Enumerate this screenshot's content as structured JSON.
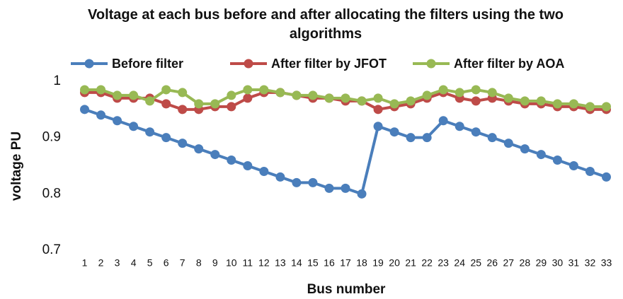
{
  "chart_data": {
    "type": "line",
    "title": "Voltage at each bus before and after allocating the filters using the two algorithms",
    "xlabel": "Bus number",
    "ylabel": "voltage PU",
    "categories": [
      1,
      2,
      3,
      4,
      5,
      6,
      7,
      8,
      9,
      10,
      11,
      12,
      13,
      14,
      15,
      16,
      17,
      18,
      19,
      20,
      21,
      22,
      23,
      24,
      25,
      26,
      27,
      28,
      29,
      30,
      31,
      32,
      33
    ],
    "series": [
      {
        "name": "Before filter",
        "color": "#4a7ebb",
        "values": [
          0.95,
          0.94,
          0.93,
          0.92,
          0.91,
          0.9,
          0.89,
          0.88,
          0.87,
          0.86,
          0.85,
          0.84,
          0.83,
          0.82,
          0.82,
          0.81,
          0.81,
          0.8,
          0.92,
          0.91,
          0.9,
          0.9,
          0.93,
          0.92,
          0.91,
          0.9,
          0.89,
          0.88,
          0.87,
          0.86,
          0.85,
          0.84,
          0.83
        ]
      },
      {
        "name": "After filter by JFOT",
        "color": "#be4b48",
        "values": [
          0.98,
          0.98,
          0.97,
          0.97,
          0.97,
          0.96,
          0.95,
          0.95,
          0.955,
          0.955,
          0.97,
          0.98,
          0.98,
          0.975,
          0.97,
          0.97,
          0.965,
          0.965,
          0.95,
          0.955,
          0.96,
          0.97,
          0.98,
          0.97,
          0.965,
          0.97,
          0.965,
          0.96,
          0.96,
          0.955,
          0.955,
          0.95,
          0.95
        ]
      },
      {
        "name": "After filter by AOA",
        "color": "#98b954",
        "values": [
          0.985,
          0.985,
          0.975,
          0.975,
          0.965,
          0.985,
          0.98,
          0.96,
          0.96,
          0.975,
          0.985,
          0.985,
          0.98,
          0.975,
          0.975,
          0.97,
          0.97,
          0.965,
          0.97,
          0.96,
          0.965,
          0.975,
          0.985,
          0.98,
          0.985,
          0.98,
          0.97,
          0.965,
          0.965,
          0.96,
          0.96,
          0.955,
          0.955
        ]
      }
    ],
    "ylim": [
      0.7,
      1.0
    ],
    "yticks": [
      0.7,
      0.8,
      0.9,
      1
    ],
    "grid": false,
    "legend": "top"
  }
}
